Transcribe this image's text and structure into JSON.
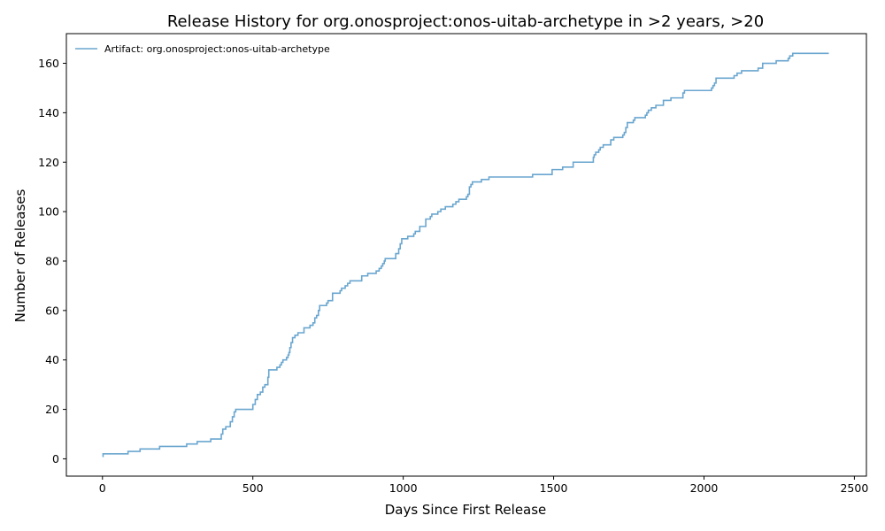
{
  "chart_data": {
    "type": "line",
    "title": "Release History for org.onosproject:onos-uitab-archetype in >2 years, >20",
    "xlabel": "Days Since First Release",
    "ylabel": "Number of Releases",
    "xlim": [
      -120,
      2540
    ],
    "ylim": [
      -7,
      172
    ],
    "xticks": [
      0,
      500,
      1000,
      1500,
      2000,
      2500
    ],
    "yticks": [
      0,
      20,
      40,
      60,
      80,
      100,
      120,
      140,
      160
    ],
    "grid": false,
    "legend_position": "top-left",
    "series": [
      {
        "name": "Artifact: org.onosproject:onos-uitab-archetype",
        "color": "#6aa6cf",
        "step": "post",
        "points": [
          [
            0,
            1
          ],
          [
            2,
            2
          ],
          [
            85,
            3
          ],
          [
            125,
            4
          ],
          [
            190,
            5
          ],
          [
            280,
            6
          ],
          [
            315,
            7
          ],
          [
            360,
            8
          ],
          [
            395,
            10
          ],
          [
            400,
            12
          ],
          [
            410,
            13
          ],
          [
            425,
            15
          ],
          [
            432,
            17
          ],
          [
            438,
            19
          ],
          [
            443,
            20
          ],
          [
            500,
            22
          ],
          [
            508,
            24
          ],
          [
            515,
            26
          ],
          [
            525,
            27
          ],
          [
            533,
            29
          ],
          [
            540,
            30
          ],
          [
            550,
            33
          ],
          [
            553,
            36
          ],
          [
            580,
            37
          ],
          [
            590,
            38
          ],
          [
            595,
            39
          ],
          [
            600,
            40
          ],
          [
            612,
            41
          ],
          [
            617,
            42
          ],
          [
            620,
            43
          ],
          [
            623,
            45
          ],
          [
            627,
            47
          ],
          [
            632,
            49
          ],
          [
            640,
            50
          ],
          [
            650,
            51
          ],
          [
            670,
            53
          ],
          [
            690,
            54
          ],
          [
            700,
            55
          ],
          [
            706,
            57
          ],
          [
            712,
            58
          ],
          [
            718,
            60
          ],
          [
            722,
            62
          ],
          [
            745,
            63
          ],
          [
            750,
            64
          ],
          [
            765,
            67
          ],
          [
            790,
            68
          ],
          [
            795,
            69
          ],
          [
            807,
            70
          ],
          [
            815,
            71
          ],
          [
            823,
            72
          ],
          [
            862,
            74
          ],
          [
            882,
            75
          ],
          [
            910,
            76
          ],
          [
            920,
            77
          ],
          [
            927,
            78
          ],
          [
            932,
            79
          ],
          [
            937,
            80
          ],
          [
            940,
            81
          ],
          [
            975,
            83
          ],
          [
            985,
            85
          ],
          [
            990,
            87
          ],
          [
            995,
            89
          ],
          [
            1015,
            90
          ],
          [
            1035,
            91
          ],
          [
            1040,
            92
          ],
          [
            1055,
            94
          ],
          [
            1075,
            97
          ],
          [
            1090,
            98
          ],
          [
            1095,
            99
          ],
          [
            1115,
            100
          ],
          [
            1125,
            101
          ],
          [
            1140,
            102
          ],
          [
            1165,
            103
          ],
          [
            1175,
            104
          ],
          [
            1185,
            105
          ],
          [
            1210,
            106
          ],
          [
            1215,
            107
          ],
          [
            1220,
            110
          ],
          [
            1225,
            111
          ],
          [
            1230,
            112
          ],
          [
            1260,
            113
          ],
          [
            1285,
            114
          ],
          [
            1430,
            115
          ],
          [
            1495,
            117
          ],
          [
            1530,
            118
          ],
          [
            1565,
            120
          ],
          [
            1632,
            122
          ],
          [
            1635,
            123
          ],
          [
            1640,
            124
          ],
          [
            1650,
            125
          ],
          [
            1655,
            126
          ],
          [
            1665,
            127
          ],
          [
            1690,
            129
          ],
          [
            1700,
            130
          ],
          [
            1730,
            131
          ],
          [
            1735,
            132
          ],
          [
            1740,
            134
          ],
          [
            1745,
            136
          ],
          [
            1765,
            137
          ],
          [
            1770,
            138
          ],
          [
            1805,
            139
          ],
          [
            1810,
            140
          ],
          [
            1815,
            141
          ],
          [
            1825,
            142
          ],
          [
            1840,
            143
          ],
          [
            1865,
            145
          ],
          [
            1890,
            146
          ],
          [
            1930,
            148
          ],
          [
            1935,
            149
          ],
          [
            2025,
            150
          ],
          [
            2030,
            151
          ],
          [
            2035,
            152
          ],
          [
            2040,
            154
          ],
          [
            2100,
            155
          ],
          [
            2110,
            156
          ],
          [
            2125,
            157
          ],
          [
            2180,
            158
          ],
          [
            2195,
            160
          ],
          [
            2240,
            161
          ],
          [
            2280,
            162
          ],
          [
            2285,
            163
          ],
          [
            2295,
            164
          ],
          [
            2415,
            164
          ]
        ]
      }
    ]
  }
}
